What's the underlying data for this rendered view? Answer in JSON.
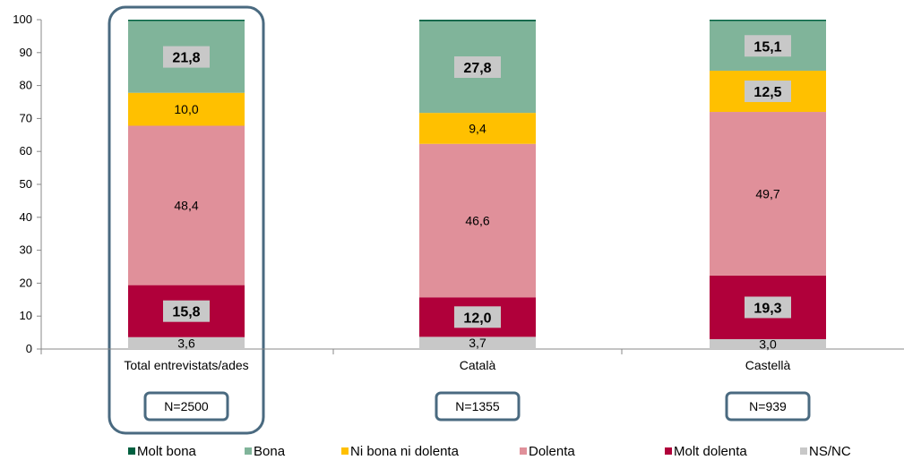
{
  "chart_data": {
    "type": "bar",
    "stacked": true,
    "percent_axis": true,
    "ylim": [
      0,
      100
    ],
    "yticks": [
      0,
      10,
      20,
      30,
      40,
      50,
      60,
      70,
      80,
      90,
      100
    ],
    "categories": [
      "Total entrevistats/ades",
      "Català",
      "Castellà"
    ],
    "sample_sizes": [
      "N=2500",
      "N=1355",
      "N=939"
    ],
    "highlighted_category": "Total entrevistats/ades",
    "legend_position": "bottom",
    "grid": false,
    "series": [
      {
        "name": "NS/NC",
        "color": "#c8c8c8",
        "values": [
          3.6,
          3.7,
          3.0
        ],
        "labels": [
          "3,6",
          "3,7",
          "3,0"
        ],
        "label_boxed": false
      },
      {
        "name": "Molt dolenta",
        "color": "#b0003a",
        "values": [
          15.8,
          12.0,
          19.3
        ],
        "labels": [
          "15,8",
          "12,0",
          "19,3"
        ],
        "label_boxed": true
      },
      {
        "name": "Dolenta",
        "color": "#e0909a",
        "values": [
          48.4,
          46.6,
          49.7
        ],
        "labels": [
          "48,4",
          "46,6",
          "49,7"
        ],
        "label_boxed": false
      },
      {
        "name": "Ni bona ni dolenta",
        "color": "#ffc000",
        "values": [
          10.0,
          9.4,
          12.5
        ],
        "labels": [
          "10,0",
          "9,4",
          "12,5"
        ],
        "label_boxed": [
          false,
          false,
          true
        ]
      },
      {
        "name": "Bona",
        "color": "#80b49a",
        "values": [
          21.8,
          27.8,
          15.1
        ],
        "labels": [
          "21,8",
          "27,8",
          "15,1"
        ],
        "label_boxed": true
      },
      {
        "name": "Molt bona",
        "color": "#006040",
        "values": [
          0.4,
          0.5,
          0.4
        ],
        "labels": [
          "",
          "",
          ""
        ],
        "label_boxed": false
      }
    ],
    "legend": [
      {
        "name": "Molt bona",
        "color": "#006040"
      },
      {
        "name": "Bona",
        "color": "#80b49a"
      },
      {
        "name": "Ni bona ni dolenta",
        "color": "#ffc000"
      },
      {
        "name": "Dolenta",
        "color": "#e0909a"
      },
      {
        "name": "Molt dolenta",
        "color": "#b0003a"
      },
      {
        "name": "NS/NC",
        "color": "#c8c8c8"
      }
    ],
    "colors": {
      "frame": "#4a6a80",
      "label_box": "#c8c8c8",
      "axis": "#888888"
    }
  }
}
